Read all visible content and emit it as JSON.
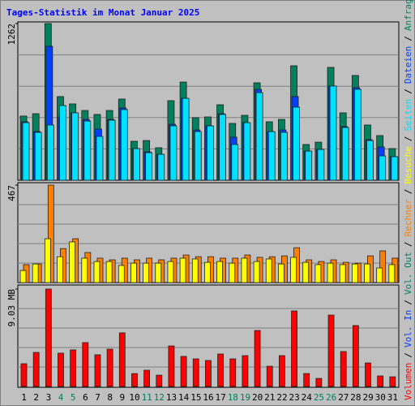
{
  "chart_data": [
    {
      "type": "bar",
      "title": "Tages-Statistik im Monat Januar 2025",
      "ylim": [
        0,
        1262
      ],
      "yticks": [
        1262
      ],
      "series": [
        {
          "name": "Anfragen",
          "color": "#00805c",
          "values": [
            517,
            536,
            1262,
            674,
            615,
            562,
            530,
            562,
            654,
            314,
            320,
            262,
            641,
            791,
            504,
            510,
            608,
            458,
            523,
            785,
            471,
            490,
            922,
            288,
            307,
            909,
            543,
            844,
            445,
            360,
            255
          ]
        },
        {
          "name": "Dateien",
          "color": "#0040ff",
          "values": [
            471,
            392,
            1079,
            510,
            543,
            490,
            412,
            490,
            582,
            255,
            229,
            209,
            451,
            660,
            405,
            438,
            536,
            347,
            464,
            732,
            392,
            405,
            674,
            235,
            248,
            759,
            432,
            745,
            327,
            268,
            190
          ]
        },
        {
          "name": "Seiten",
          "color": "#00e0ff",
          "values": [
            464,
            386,
            445,
            602,
            543,
            477,
            353,
            484,
            569,
            255,
            222,
            209,
            438,
            660,
            392,
            438,
            530,
            288,
            464,
            706,
            392,
            386,
            589,
            235,
            248,
            759,
            425,
            732,
            320,
            196,
            190
          ]
        }
      ]
    },
    {
      "type": "bar",
      "ylim": [
        0,
        467
      ],
      "yticks": [
        467
      ],
      "series": [
        {
          "name": "Rechner",
          "color": "#ff8000",
          "values": [
            86,
            89,
            467,
            163,
            210,
            144,
            117,
            109,
            117,
            109,
            117,
            109,
            117,
            132,
            124,
            124,
            117,
            117,
            132,
            121,
            124,
            128,
            167,
            109,
            101,
            109,
            97,
            93,
            128,
            152,
            117
          ]
        },
        {
          "name": "Besuche",
          "color": "#ffff00",
          "values": [
            58,
            89,
            210,
            124,
            195,
            117,
            101,
            101,
            82,
            93,
            93,
            93,
            101,
            117,
            113,
            97,
            101,
            93,
            117,
            101,
            113,
            89,
            121,
            97,
            86,
            93,
            86,
            89,
            89,
            70,
            86
          ]
        }
      ]
    },
    {
      "type": "bar",
      "ylim": [
        0,
        9.03
      ],
      "yticks": [
        {
          "value": 9.03,
          "label": "9.03 MB"
        }
      ],
      "series": [
        {
          "name": "Volumen",
          "color": "#ff0000",
          "values": [
            2.11,
            3.16,
            9.03,
            3.09,
            3.39,
            4.07,
            2.94,
            3.46,
            4.97,
            1.2,
            1.51,
            1.05,
            3.76,
            2.79,
            2.56,
            2.41,
            3.01,
            2.56,
            2.86,
            5.19,
            1.88,
            2.86,
            7.0,
            1.2,
            0.75,
            6.62,
            3.24,
            5.65,
            2.18,
            0.98,
            0.9
          ]
        }
      ],
      "legend_entries": [
        {
          "name": "Vol. In",
          "color": "#0040ff"
        },
        {
          "name": "Vol. Out",
          "color": "#00805c"
        }
      ],
      "legend_separator": "/",
      "categories": [
        "1",
        "2",
        "3",
        "4",
        "5",
        "6",
        "7",
        "8",
        "9",
        "10",
        "11",
        "12",
        "13",
        "14",
        "15",
        "16",
        "17",
        "18",
        "19",
        "20",
        "21",
        "22",
        "23",
        "24",
        "25",
        "26",
        "27",
        "28",
        "29",
        "30",
        "31"
      ],
      "category_colors": [
        "#000",
        "#000",
        "#000",
        "#00805c",
        "#00805c",
        "#000",
        "#000",
        "#000",
        "#000",
        "#000",
        "#00805c",
        "#00805c",
        "#000",
        "#000",
        "#000",
        "#000",
        "#000",
        "#00805c",
        "#00805c",
        "#000",
        "#000",
        "#000",
        "#000",
        "#000",
        "#00805c",
        "#00805c",
        "#000",
        "#000",
        "#000",
        "#000",
        "#000"
      ]
    }
  ]
}
